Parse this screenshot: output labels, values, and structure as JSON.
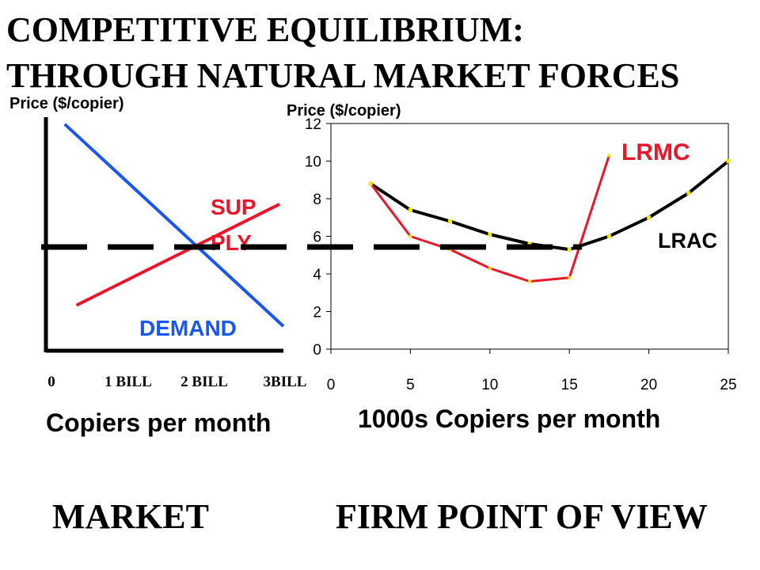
{
  "title": {
    "line1": "COMPETITIVE EQUILIBRIUM:",
    "line2": "THROUGH NATURAL MARKET FORCES"
  },
  "captions": {
    "market": "MARKET",
    "firm": "FIRM POINT OF VIEW"
  },
  "colors": {
    "demand": "#1a56f0",
    "supply": "#e8182a",
    "lrmc": "#e8182a",
    "lrac": "#000000",
    "marker": "#f2e600",
    "equilibrium_line": "#000000"
  },
  "chart_data": [
    {
      "id": "market",
      "type": "line",
      "ylabel": "Price ($/copier)",
      "xlabel": "Copiers per month",
      "x_tick_labels": [
        "0",
        "1 BILL",
        "2 BILL",
        "3BILL"
      ],
      "xlim": [
        0,
        3
      ],
      "ylim": [
        0,
        12
      ],
      "grid": false,
      "series": [
        {
          "name": "DEMAND",
          "points": [
            [
              0.2,
              11.8
            ],
            [
              3.0,
              1.2
            ]
          ]
        },
        {
          "name": "SUP PLY",
          "points": [
            [
              0.35,
              2.3
            ],
            [
              2.95,
              7.6
            ]
          ]
        }
      ],
      "equilibrium_price": 5.5,
      "label_supply_lines": [
        "SUP",
        "PLY"
      ],
      "label_demand": "DEMAND"
    },
    {
      "id": "firm",
      "type": "line",
      "ylabel": "Price ($/copier)",
      "xlabel": "1000s Copiers per month",
      "xlim": [
        0,
        25
      ],
      "ylim": [
        0,
        12
      ],
      "x_ticks": [
        0,
        5,
        10,
        15,
        20,
        25
      ],
      "y_ticks": [
        0,
        2,
        4,
        6,
        8,
        10,
        12
      ],
      "grid": false,
      "series": [
        {
          "name": "LRMC",
          "x": [
            2.5,
            5,
            7.5,
            10,
            12.5,
            15,
            17.5
          ],
          "y": [
            8.8,
            6.0,
            5.3,
            4.3,
            3.6,
            3.8,
            10.3
          ]
        },
        {
          "name": "LRAC",
          "x": [
            2.5,
            5,
            7.5,
            10,
            12.5,
            15,
            17.5,
            20,
            22.5,
            25
          ],
          "y": [
            8.8,
            7.4,
            6.8,
            6.1,
            5.6,
            5.3,
            6.0,
            7.0,
            8.3,
            10.0
          ]
        }
      ],
      "equilibrium_price": 5.5
    }
  ]
}
